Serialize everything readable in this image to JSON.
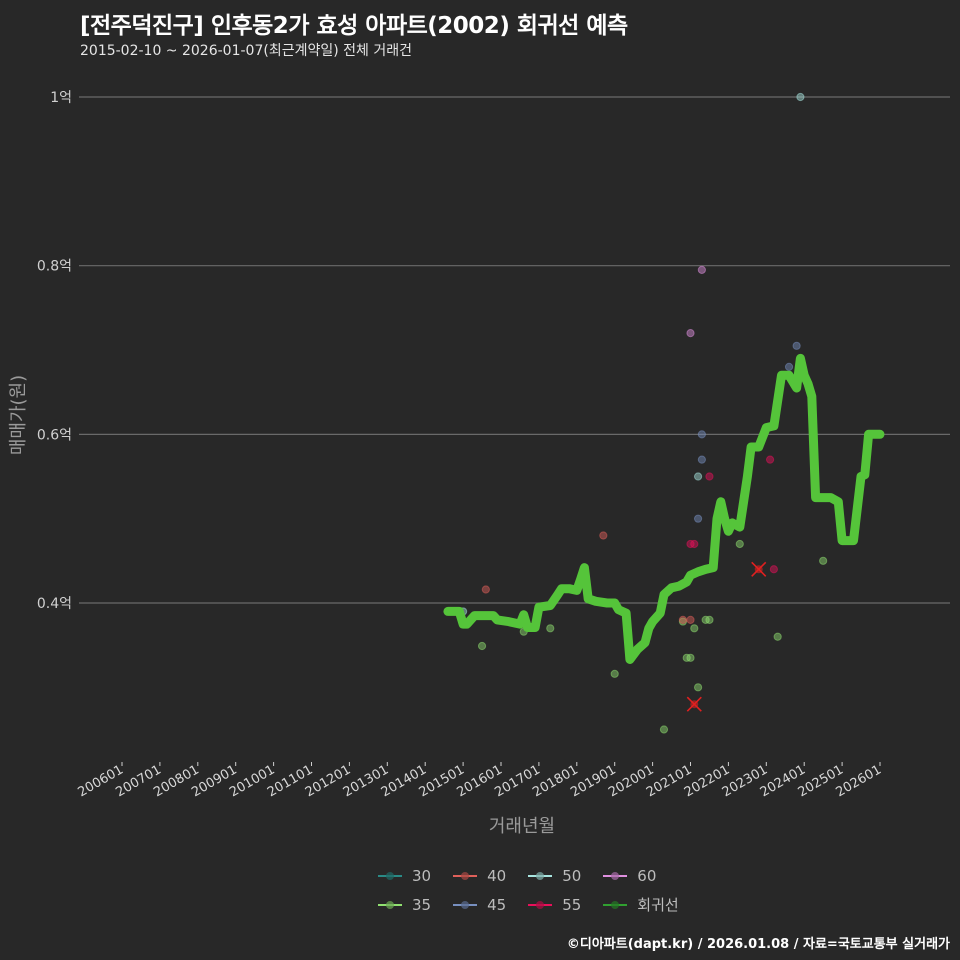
{
  "header": {
    "title": "[전주덕진구] 인후동2가 효성 아파트(2002) 회귀선 예측",
    "subtitle": "2015-02-10 ~ 2026-01-07(최근계약일) 전체 거래건"
  },
  "axes": {
    "y_title": "매매가(원)",
    "x_title": "거래년월",
    "y_ticks": [
      {
        "label": "1억",
        "value": 1.0
      },
      {
        "label": "0.8억",
        "value": 0.8
      },
      {
        "label": "0.6억",
        "value": 0.6
      },
      {
        "label": "0.4억",
        "value": 0.4
      }
    ],
    "x_ticks": [
      "200601",
      "200701",
      "200801",
      "200901",
      "201001",
      "201101",
      "201201",
      "201301",
      "201401",
      "201501",
      "201601",
      "201701",
      "201801",
      "201901",
      "202001",
      "202101",
      "202201",
      "202301",
      "202401",
      "202501",
      "202601"
    ]
  },
  "legend": {
    "items": [
      {
        "label": "30",
        "color": "#2a8a86"
      },
      {
        "label": "40",
        "color": "#e0605a"
      },
      {
        "label": "50",
        "color": "#a8e6e0"
      },
      {
        "label": "60",
        "color": "#e090e0"
      },
      {
        "label": "35",
        "color": "#90e070"
      },
      {
        "label": "45",
        "color": "#7890c0"
      },
      {
        "label": "55",
        "color": "#e8105a"
      },
      {
        "label": "회귀선",
        "color": "#30a030"
      }
    ]
  },
  "caption": "©디아파트(dapt.kr) / 2026.01.08 / 자료=국토교통부 실거래가",
  "colors": {
    "background": "#282828",
    "grid": "#6a6a6a",
    "regression": "#55c43a",
    "outlier_x": "#e02020"
  },
  "chart_data": {
    "type": "scatter",
    "title": "[전주덕진구] 인후동2가 효성 아파트(2002) 회귀선 예측",
    "subtitle": "2015-02-10 ~ 2026-01-07(최근계약일) 전체 거래건",
    "xlabel": "거래년월",
    "ylabel": "매매가(원)",
    "y_unit": "억",
    "ylim": [
      0.22,
      1.02
    ],
    "xlim": [
      2005.6,
      2026.3
    ],
    "grid": "horizontal",
    "legend_position": "bottom",
    "series": [
      {
        "name": "회귀선",
        "kind": "line",
        "points": [
          [
            2014.6,
            0.39
          ],
          [
            2014.9,
            0.39
          ],
          [
            2015.0,
            0.375
          ],
          [
            2015.1,
            0.375
          ],
          [
            2015.3,
            0.385
          ],
          [
            2015.5,
            0.385
          ],
          [
            2015.8,
            0.385
          ],
          [
            2015.9,
            0.38
          ],
          [
            2016.2,
            0.378
          ],
          [
            2016.5,
            0.375
          ],
          [
            2016.6,
            0.386
          ],
          [
            2016.7,
            0.371
          ],
          [
            2016.9,
            0.371
          ],
          [
            2017.0,
            0.395
          ],
          [
            2017.3,
            0.397
          ],
          [
            2017.5,
            0.41
          ],
          [
            2017.6,
            0.417
          ],
          [
            2017.8,
            0.417
          ],
          [
            2018.0,
            0.415
          ],
          [
            2018.1,
            0.428
          ],
          [
            2018.2,
            0.442
          ],
          [
            2018.3,
            0.405
          ],
          [
            2018.5,
            0.402
          ],
          [
            2018.8,
            0.4
          ],
          [
            2019.0,
            0.4
          ],
          [
            2019.1,
            0.392
          ],
          [
            2019.3,
            0.388
          ],
          [
            2019.4,
            0.333
          ],
          [
            2019.6,
            0.345
          ],
          [
            2019.8,
            0.353
          ],
          [
            2019.9,
            0.37
          ],
          [
            2020.0,
            0.378
          ],
          [
            2020.2,
            0.388
          ],
          [
            2020.3,
            0.41
          ],
          [
            2020.5,
            0.418
          ],
          [
            2020.7,
            0.42
          ],
          [
            2020.9,
            0.425
          ],
          [
            2021.0,
            0.433
          ],
          [
            2021.2,
            0.437
          ],
          [
            2021.4,
            0.44
          ],
          [
            2021.6,
            0.442
          ],
          [
            2021.7,
            0.5
          ],
          [
            2021.8,
            0.52
          ],
          [
            2021.9,
            0.5
          ],
          [
            2022.0,
            0.485
          ],
          [
            2022.1,
            0.495
          ],
          [
            2022.3,
            0.49
          ],
          [
            2022.4,
            0.52
          ],
          [
            2022.5,
            0.55
          ],
          [
            2022.6,
            0.585
          ],
          [
            2022.8,
            0.585
          ],
          [
            2023.0,
            0.608
          ],
          [
            2023.2,
            0.61
          ],
          [
            2023.4,
            0.67
          ],
          [
            2023.6,
            0.67
          ],
          [
            2023.8,
            0.655
          ],
          [
            2023.9,
            0.69
          ],
          [
            2024.0,
            0.67
          ],
          [
            2024.1,
            0.66
          ],
          [
            2024.2,
            0.645
          ],
          [
            2024.3,
            0.525
          ],
          [
            2024.7,
            0.525
          ],
          [
            2024.9,
            0.52
          ],
          [
            2025.0,
            0.474
          ],
          [
            2025.3,
            0.474
          ],
          [
            2025.5,
            0.55
          ],
          [
            2025.6,
            0.552
          ],
          [
            2025.7,
            0.6
          ],
          [
            2026.0,
            0.6
          ]
        ]
      },
      {
        "name": "30",
        "kind": "scatter",
        "points": []
      },
      {
        "name": "35",
        "kind": "scatter",
        "points": [
          [
            2015.5,
            0.349
          ],
          [
            2016.6,
            0.366
          ],
          [
            2017.3,
            0.37
          ],
          [
            2019.0,
            0.316
          ],
          [
            2020.3,
            0.25
          ],
          [
            2020.8,
            0.378
          ],
          [
            2020.9,
            0.335
          ],
          [
            2021.0,
            0.335
          ],
          [
            2021.1,
            0.37
          ],
          [
            2021.2,
            0.3
          ],
          [
            2021.4,
            0.38
          ],
          [
            2021.5,
            0.38
          ],
          [
            2022.3,
            0.47
          ],
          [
            2023.3,
            0.36
          ],
          [
            2024.5,
            0.45
          ]
        ]
      },
      {
        "name": "40",
        "kind": "scatter",
        "points": [
          [
            2015.6,
            0.416
          ],
          [
            2018.7,
            0.48
          ],
          [
            2020.8,
            0.38
          ],
          [
            2021.0,
            0.38
          ]
        ]
      },
      {
        "name": "45",
        "kind": "scatter",
        "points": [
          [
            2021.2,
            0.5
          ],
          [
            2021.3,
            0.57
          ],
          [
            2021.3,
            0.6
          ],
          [
            2023.6,
            0.68
          ],
          [
            2023.8,
            0.705
          ]
        ]
      },
      {
        "name": "50",
        "kind": "scatter",
        "points": [
          [
            2015.0,
            0.39
          ],
          [
            2021.2,
            0.55
          ],
          [
            2023.9,
            1.0
          ]
        ]
      },
      {
        "name": "55",
        "kind": "scatter",
        "points": [
          [
            2021.0,
            0.47
          ],
          [
            2021.1,
            0.47
          ],
          [
            2021.5,
            0.55
          ],
          [
            2023.1,
            0.57
          ],
          [
            2023.2,
            0.44
          ]
        ]
      },
      {
        "name": "60",
        "kind": "scatter",
        "points": [
          [
            2021.0,
            0.72
          ],
          [
            2021.3,
            0.795
          ]
        ]
      },
      {
        "name": "outliers",
        "kind": "x-marker",
        "points": [
          [
            2021.1,
            0.28
          ],
          [
            2022.8,
            0.44
          ]
        ]
      }
    ]
  }
}
